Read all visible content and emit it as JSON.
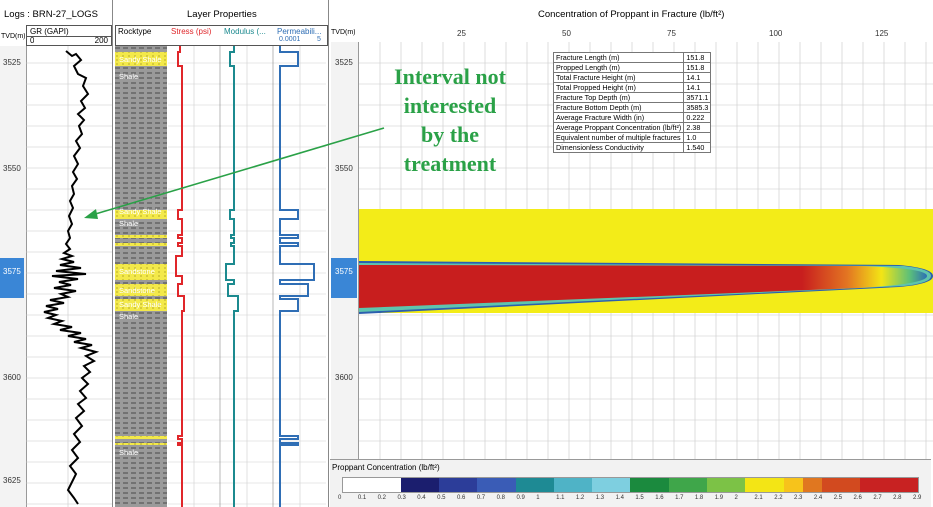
{
  "logs_panel": {
    "title": "Logs : BRN-27_LOGS",
    "tvd_header": "TVD(m)",
    "gr_header": "GR (GAPI)",
    "gr_min": "0",
    "gr_max": "200",
    "depth_ticks": [
      "3525",
      "3550",
      "3575",
      "3600",
      "3625"
    ]
  },
  "layer_panel": {
    "title": "Layer Properties",
    "columns": {
      "rocktype": "Rocktype",
      "stress": "Stress (psi)",
      "modulus": "Modulus (...",
      "permeability": "Permeabili...",
      "perm_min": "0.0001",
      "perm_max": "5"
    },
    "lithology_labels": [
      "Sandy Shale",
      "Shale",
      "Sandy Shale",
      "Shale",
      "Sandstone",
      "Sandstone",
      "Sandy Shale",
      "Shale",
      "Shale"
    ]
  },
  "frac_panel": {
    "title": "Concentration of Proppant in Fracture (lb/ft²)",
    "tvd_header": "TVD(m)",
    "x_ticks": [
      "25",
      "50",
      "75",
      "100",
      "125"
    ],
    "depth_ticks": [
      "3525",
      "3550",
      "3575",
      "3600"
    ],
    "info_table": [
      [
        "Fracture Length (m)",
        "151.8"
      ],
      [
        "Propped Length (m)",
        "151.8"
      ],
      [
        "Total Fracture Height (m)",
        "14.1"
      ],
      [
        "Total Propped Height (m)",
        "14.1"
      ],
      [
        "Fracture Top Depth (m)",
        "3571.1"
      ],
      [
        "Fracture Bottom Depth (m)",
        "3585.3"
      ],
      [
        "Average Fracture Width (in)",
        "0.222"
      ],
      [
        "Average Proppant Concentration (lb/ft²)",
        "2.38"
      ],
      [
        "Equivalent number of multiple fractures",
        "1.0"
      ],
      [
        "Dimensionless Conductivity",
        "1.540"
      ]
    ]
  },
  "annotation": {
    "lines": [
      "Interval not",
      "interested",
      "by the",
      "treatment"
    ],
    "color": "#2aa147"
  },
  "colorbar": {
    "title": "Proppant Concentration (lb/ft²)",
    "labels": [
      "0",
      "0.1",
      "0.2",
      "0.3",
      "0.4",
      "0.5",
      "0.6",
      "0.7",
      "0.8",
      "0.9",
      "1",
      "1.1",
      "1.2",
      "1.3",
      "1.4",
      "1.5",
      "1.6",
      "1.7",
      "1.8",
      "1.9",
      "2",
      "2.1",
      "2.2",
      "2.3",
      "2.4",
      "2.5",
      "2.6",
      "2.7",
      "2.8",
      "2.9"
    ],
    "colors": [
      "#ffffff",
      "#ffffff",
      "#ffffff",
      "#1b1e6e",
      "#1b1e6e",
      "#2c3d99",
      "#2c3d99",
      "#3a5cb6",
      "#3a5cb6",
      "#1e8a94",
      "#1e8a94",
      "#4fb3c6",
      "#4fb3c6",
      "#7ecfe0",
      "#7ecfe0",
      "#1b8a3e",
      "#1b8a3e",
      "#3fa64a",
      "#3fa64a",
      "#7cc246",
      "#7cc246",
      "#f3e515",
      "#f3e515",
      "#f7c31b",
      "#e07720",
      "#d24a1f",
      "#d24a1f",
      "#c82222",
      "#c82222",
      "#c82222"
    ]
  },
  "colors": {
    "stress_curve": "#e0262a",
    "modulus_curve": "#1c8a8f",
    "perm_curve": "#2f6eb5",
    "selected_depth": "#3a86d6",
    "fracture_yellow": "#f3ec18",
    "fracture_red": "#c81e1e"
  }
}
